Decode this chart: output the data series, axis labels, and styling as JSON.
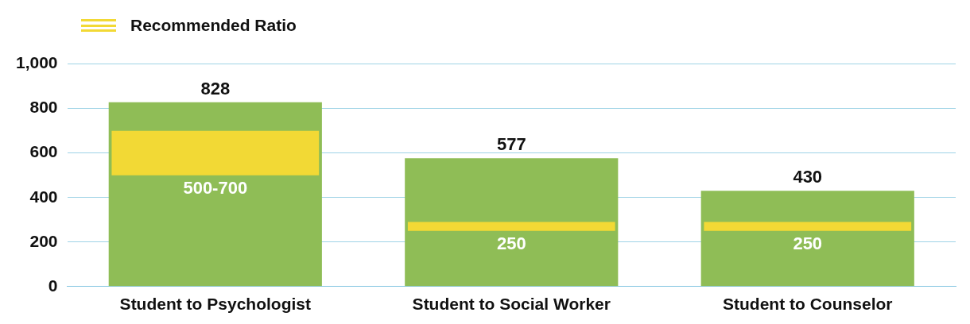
{
  "chart_data": {
    "type": "bar",
    "categories": [
      "Student to Psychologist",
      "Student to Social Worker",
      "Student to Counselor"
    ],
    "series": [
      {
        "color": "#8fbd56",
        "values": [
          828,
          577,
          430
        ],
        "data_labels": true
      },
      {
        "name": "Recommended Ratio",
        "color": "#f2d935",
        "base": [
          500,
          250,
          250
        ],
        "values": [
          200,
          40,
          40
        ]
      }
    ],
    "annotations": [
      {
        "text": "500-700",
        "x": "Student to Psychologist",
        "y": 500
      },
      {
        "text": "250",
        "x": "Student to Social Worker",
        "y": 250
      },
      {
        "text": "250",
        "x": "Student to Counselor",
        "y": 250
      }
    ],
    "ylim": [
      0,
      1000
    ],
    "yticks": [
      0,
      200,
      400,
      600,
      800,
      {
        "value": 1000,
        "label": "1,000"
      }
    ],
    "grid": "y",
    "legend": "top left"
  }
}
